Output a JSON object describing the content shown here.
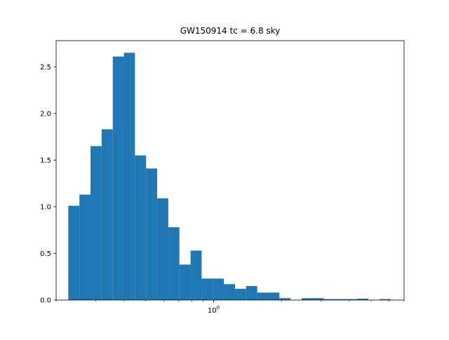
{
  "chart_data": {
    "type": "bar",
    "title": "GW150914 tc = 6.8 sky",
    "xlabel": "",
    "ylabel": "",
    "xscale": "log",
    "xlim": [
      0.2,
      7.0
    ],
    "ylim": [
      0,
      2.78
    ],
    "grid": false,
    "bar_color": "#1f77b4",
    "yticks": [
      {
        "value": 0.0,
        "label": "0.0"
      },
      {
        "value": 0.5,
        "label": "0.5"
      },
      {
        "value": 1.0,
        "label": "1.0"
      },
      {
        "value": 1.5,
        "label": "1.5"
      },
      {
        "value": 2.0,
        "label": "2.0"
      },
      {
        "value": 2.5,
        "label": "2.5"
      }
    ],
    "xticks": [
      {
        "value": 1.0,
        "label": "10",
        "exponent": "0"
      }
    ],
    "bins": [
      {
        "left": 0.2265,
        "right": 0.2538,
        "height": 1.01
      },
      {
        "left": 0.2538,
        "right": 0.2842,
        "height": 1.13
      },
      {
        "left": 0.2842,
        "right": 0.3184,
        "height": 1.65
      },
      {
        "left": 0.3184,
        "right": 0.3567,
        "height": 1.83
      },
      {
        "left": 0.3567,
        "right": 0.3996,
        "height": 2.61
      },
      {
        "left": 0.3996,
        "right": 0.4476,
        "height": 2.65
      },
      {
        "left": 0.4476,
        "right": 0.5014,
        "height": 1.55
      },
      {
        "left": 0.5014,
        "right": 0.5617,
        "height": 1.41
      },
      {
        "left": 0.5617,
        "right": 0.6292,
        "height": 1.09
      },
      {
        "left": 0.6292,
        "right": 0.7049,
        "height": 0.78
      },
      {
        "left": 0.7049,
        "right": 0.7896,
        "height": 0.38
      },
      {
        "left": 0.7896,
        "right": 0.8846,
        "height": 0.53
      },
      {
        "left": 0.8846,
        "right": 0.9909,
        "height": 0.23
      },
      {
        "left": 0.9909,
        "right": 1.11,
        "height": 0.23
      },
      {
        "left": 1.11,
        "right": 1.2435,
        "height": 0.17
      },
      {
        "left": 1.2435,
        "right": 1.393,
        "height": 0.12
      },
      {
        "left": 1.393,
        "right": 1.5605,
        "height": 0.15
      },
      {
        "left": 1.5605,
        "right": 1.7481,
        "height": 0.08
      },
      {
        "left": 1.7481,
        "right": 1.9583,
        "height": 0.08
      },
      {
        "left": 1.9583,
        "right": 2.1938,
        "height": 0.02
      },
      {
        "left": 2.1938,
        "right": 2.4575,
        "height": 0.0
      },
      {
        "left": 2.4575,
        "right": 2.753,
        "height": 0.02
      },
      {
        "left": 2.753,
        "right": 3.084,
        "height": 0.02
      },
      {
        "left": 3.084,
        "right": 3.4548,
        "height": 0.01
      },
      {
        "left": 3.4548,
        "right": 3.8702,
        "height": 0.01
      },
      {
        "left": 3.8702,
        "right": 4.3355,
        "height": 0.01
      },
      {
        "left": 4.3355,
        "right": 4.8568,
        "height": 0.015
      },
      {
        "left": 4.8568,
        "right": 5.4408,
        "height": 0.0
      },
      {
        "left": 5.4408,
        "right": 6.095,
        "height": 0.01
      }
    ]
  }
}
